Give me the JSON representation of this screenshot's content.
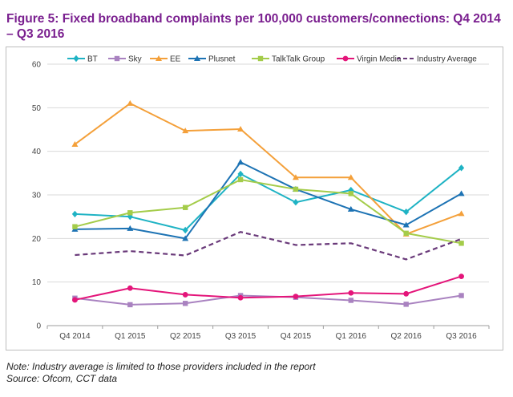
{
  "title": "Figure 5: Fixed broadband complaints per 100,000 customers/connections: Q4 2014 – Q3 2016",
  "notes": {
    "line1": "Note: Industry average is limited to those providers included in the report",
    "line2": "Source: Ofcom, CCT data"
  },
  "chart_data": {
    "type": "line",
    "title": "",
    "xlabel": "",
    "ylabel": "",
    "ylim": [
      0,
      60
    ],
    "yticks": [
      0,
      10,
      20,
      30,
      40,
      50,
      60
    ],
    "grid": true,
    "legend_position": "top",
    "categories": [
      "Q4 2014",
      "Q1 2015",
      "Q2 2015",
      "Q3 2015",
      "Q4 2015",
      "Q1 2016",
      "Q2 2016",
      "Q3 2016"
    ],
    "series": [
      {
        "name": "BT",
        "color": "#1fb3c4",
        "marker": "diamond",
        "dashed": false,
        "values": [
          25.6,
          25.0,
          21.9,
          34.8,
          28.3,
          31.1,
          26.1,
          36.2
        ]
      },
      {
        "name": "Sky",
        "color": "#a982c0",
        "marker": "square",
        "dashed": false,
        "values": [
          6.3,
          4.8,
          5.1,
          6.9,
          6.5,
          5.8,
          4.9,
          6.9
        ]
      },
      {
        "name": "EE",
        "color": "#f4a03a",
        "marker": "triangle",
        "dashed": false,
        "values": [
          41.6,
          51.0,
          44.7,
          45.1,
          34.0,
          34.0,
          21.0,
          25.7
        ]
      },
      {
        "name": "Plusnet",
        "color": "#1d73b4",
        "marker": "triangle",
        "dashed": false,
        "values": [
          22.1,
          22.3,
          20.0,
          37.5,
          31.3,
          26.7,
          23.1,
          30.3
        ]
      },
      {
        "name": "TalkTalk Group",
        "color": "#a4cc4a",
        "marker": "square",
        "dashed": false,
        "values": [
          22.7,
          25.9,
          27.1,
          33.5,
          31.3,
          30.3,
          21.2,
          18.9
        ]
      },
      {
        "name": "Virgin Media",
        "color": "#e4157a",
        "marker": "circle",
        "dashed": false,
        "values": [
          5.9,
          8.6,
          7.1,
          6.4,
          6.7,
          7.5,
          7.3,
          11.3
        ]
      },
      {
        "name": "Industry Average",
        "color": "#6a3a7a",
        "marker": "none",
        "dashed": true,
        "values": [
          16.2,
          17.1,
          16.1,
          21.5,
          18.5,
          18.9,
          15.2,
          19.9
        ]
      }
    ]
  }
}
